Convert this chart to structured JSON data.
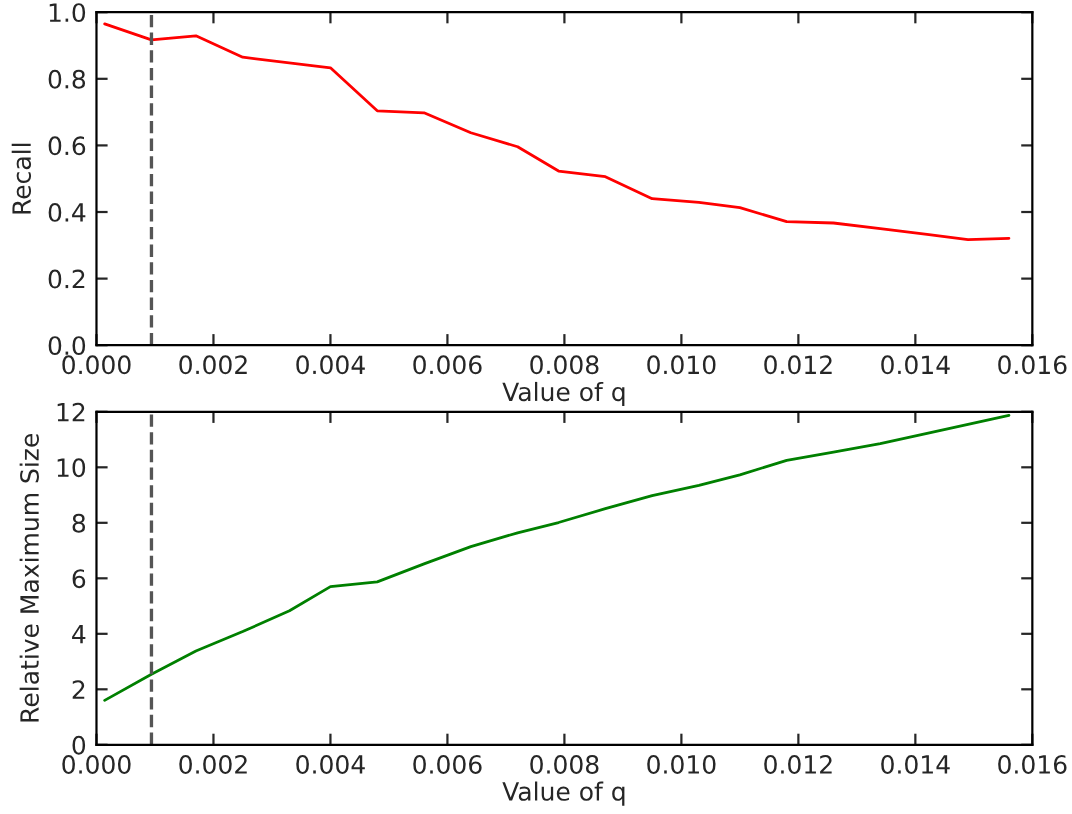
{
  "chart_data": [
    {
      "type": "line",
      "xlabel": "Value of q",
      "ylabel": "Recall",
      "xlim": [
        0,
        0.016
      ],
      "ylim": [
        0,
        1.0
      ],
      "xticks": [
        {
          "value": 0,
          "label": "0.000"
        },
        {
          "value": 0.002,
          "label": "0.002"
        },
        {
          "value": 0.004,
          "label": "0.004"
        },
        {
          "value": 0.006,
          "label": "0.006"
        },
        {
          "value": 0.008,
          "label": "0.008"
        },
        {
          "value": 0.01,
          "label": "0.010"
        },
        {
          "value": 0.012,
          "label": "0.012"
        },
        {
          "value": 0.014,
          "label": "0.014"
        },
        {
          "value": 0.016,
          "label": "0.016"
        }
      ],
      "yticks": [
        {
          "value": 0,
          "label": "0.0"
        },
        {
          "value": 0.2,
          "label": "0.2"
        },
        {
          "value": 0.4,
          "label": "0.4"
        },
        {
          "value": 0.6,
          "label": "0.6"
        },
        {
          "value": 0.8,
          "label": "0.8"
        },
        {
          "value": 1.0,
          "label": "1.0"
        }
      ],
      "x": [
        0.00014,
        0.00094,
        0.0017,
        0.0025,
        0.004,
        0.0048,
        0.0056,
        0.0064,
        0.0072,
        0.0079,
        0.0087,
        0.0095,
        0.0103,
        0.011,
        0.0118,
        0.0126,
        0.0134,
        0.0142,
        0.0149,
        0.0156
      ],
      "series": [
        {
          "color": "#ff0000",
          "values": [
            0.965,
            0.917,
            0.929,
            0.865,
            0.833,
            0.704,
            0.698,
            0.638,
            0.596,
            0.523,
            0.506,
            0.44,
            0.429,
            0.413,
            0.371,
            0.367,
            0.35,
            0.333,
            0.317,
            0.321
          ]
        }
      ],
      "ref_lines": [
        {
          "axis": "x",
          "value": 0.00094,
          "color": "#555555",
          "line_style": "dashed"
        }
      ]
    },
    {
      "type": "line",
      "xlabel": "Value of q",
      "ylabel": "Relative Maximum Size",
      "xlim": [
        0,
        0.016
      ],
      "ylim": [
        0,
        12
      ],
      "xticks": [
        {
          "value": 0,
          "label": "0.000"
        },
        {
          "value": 0.002,
          "label": "0.002"
        },
        {
          "value": 0.004,
          "label": "0.004"
        },
        {
          "value": 0.006,
          "label": "0.006"
        },
        {
          "value": 0.008,
          "label": "0.008"
        },
        {
          "value": 0.01,
          "label": "0.010"
        },
        {
          "value": 0.012,
          "label": "0.012"
        },
        {
          "value": 0.014,
          "label": "0.014"
        },
        {
          "value": 0.016,
          "label": "0.016"
        }
      ],
      "yticks": [
        0,
        2,
        4,
        6,
        8,
        10,
        12
      ],
      "x": [
        0.00014,
        0.00094,
        0.0017,
        0.0025,
        0.0033,
        0.004,
        0.0048,
        0.0056,
        0.0064,
        0.0072,
        0.0079,
        0.0087,
        0.0095,
        0.0103,
        0.011,
        0.0118,
        0.0126,
        0.0134,
        0.0142,
        0.0149,
        0.0156
      ],
      "series": [
        {
          "color": "#008000",
          "values": [
            1.6,
            2.54,
            3.38,
            4.08,
            4.83,
            5.7,
            5.87,
            6.52,
            7.14,
            7.64,
            8.01,
            8.51,
            8.98,
            9.35,
            9.73,
            10.25,
            10.55,
            10.85,
            11.22,
            11.55,
            11.87
          ]
        }
      ],
      "ref_lines": [
        {
          "axis": "x",
          "value": 0.00094,
          "color": "#555555",
          "line_style": "dashed"
        }
      ]
    }
  ]
}
